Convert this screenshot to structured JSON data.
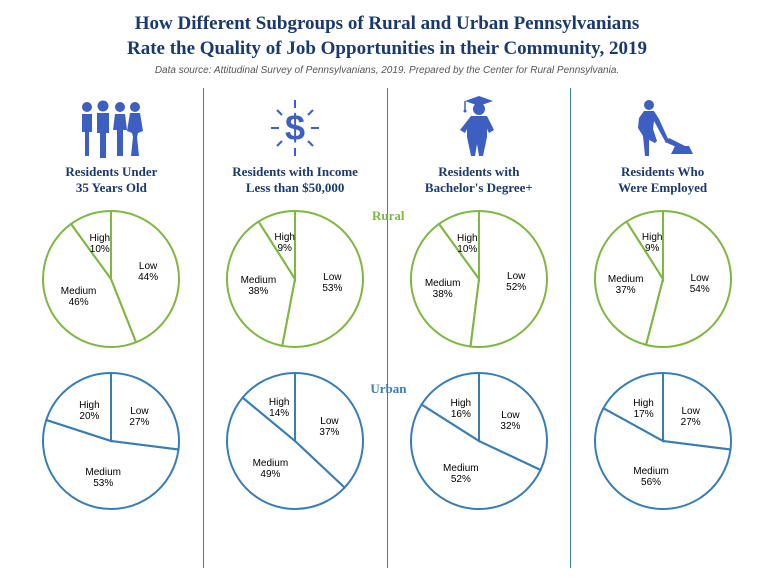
{
  "title_line1": "How Different Subgroups of Rural and Urban Pennsylvanians",
  "title_line2": "Rate the Quality of Job Opportunities in their Community, 2019",
  "subtitle": "Data source: Attitudinal Survey of Pennsylvanians, 2019. Prepared by the Center for Rural Pennsylvania.",
  "rural_label": "Rural",
  "urban_label": "Urban",
  "icon_color": "#3c5fc1",
  "rural_color": "#7fb742",
  "urban_color": "#397db5",
  "columns": [
    {
      "label": "Residents Under 35 Years Old",
      "icon": "people",
      "rural": {
        "low": 44,
        "medium": 46,
        "high": 10
      },
      "urban": {
        "low": 27,
        "medium": 53,
        "high": 20
      }
    },
    {
      "label": "Residents with Income Less than $50,000",
      "icon": "dollar",
      "rural": {
        "low": 53,
        "medium": 38,
        "high": 9
      },
      "urban": {
        "low": 37,
        "medium": 49,
        "high": 14
      }
    },
    {
      "label": "Residents with Bachelor's Degree+",
      "icon": "grad",
      "rural": {
        "low": 52,
        "medium": 38,
        "high": 10
      },
      "urban": {
        "low": 32,
        "medium": 52,
        "high": 16
      }
    },
    {
      "label": "Residents Who Were Employed",
      "icon": "worker",
      "rural": {
        "low": 54,
        "medium": 37,
        "high": 9
      },
      "urban": {
        "low": 27,
        "medium": 56,
        "high": 17
      }
    }
  ],
  "slice_labels": {
    "low": "Low",
    "medium": "Medium",
    "high": "High"
  }
}
